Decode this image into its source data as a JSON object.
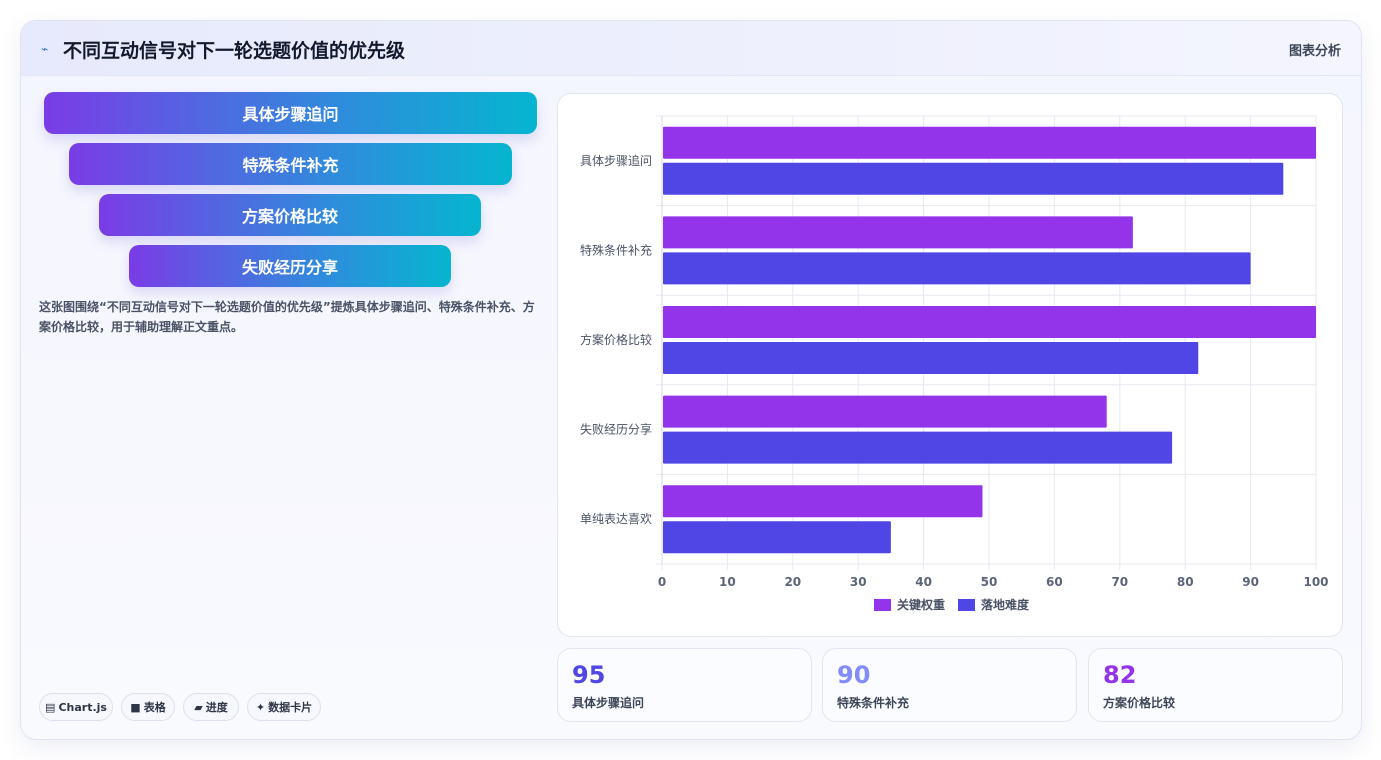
{
  "header": {
    "title": "不同互动信号对下一轮选题价值的优先级",
    "tag": "图表分析"
  },
  "funnel": [
    {
      "label": "具体步骤追问"
    },
    {
      "label": "特殊条件补充"
    },
    {
      "label": "方案价格比较"
    },
    {
      "label": "失败经历分享"
    }
  ],
  "description": "这张图围绕“不同互动信号对下一轮选题价值的优先级”提炼具体步骤追问、特殊条件补充、方案价格比较，用于辅助理解正文重点。",
  "pills": [
    {
      "icon": "▤",
      "icon_name": "chart-icon",
      "label": "Chart.js"
    },
    {
      "icon": "■",
      "icon_name": "table-icon",
      "label": "表格"
    },
    {
      "icon": "▰",
      "icon_name": "progress-icon",
      "label": "进度"
    },
    {
      "icon": "✦",
      "icon_name": "sparkle-icon",
      "label": "数据卡片"
    }
  ],
  "chart_data": {
    "type": "bar",
    "orientation": "horizontal",
    "categories": [
      "具体步骤追问",
      "特殊条件补充",
      "方案价格比较",
      "失败经历分享",
      "单纯表达喜欢"
    ],
    "series": [
      {
        "name": "关键权重",
        "color": "#9333ea",
        "values": [
          100,
          72,
          100,
          68,
          49
        ]
      },
      {
        "name": "落地难度",
        "color": "#4f46e5",
        "values": [
          95,
          90,
          82,
          78,
          35
        ]
      }
    ],
    "xlim": [
      0,
      100
    ],
    "xticks": [
      "0",
      "10",
      "20",
      "30",
      "40",
      "50",
      "60",
      "70",
      "80",
      "90",
      "100"
    ],
    "grid": true,
    "legend": "bottom"
  },
  "stats": [
    {
      "value": "95",
      "label": "具体步骤追问",
      "color": "#4f46e5"
    },
    {
      "value": "90",
      "label": "特殊条件补充",
      "color": "#818cf8"
    },
    {
      "value": "82",
      "label": "方案价格比较",
      "color": "#9333ea"
    }
  ]
}
